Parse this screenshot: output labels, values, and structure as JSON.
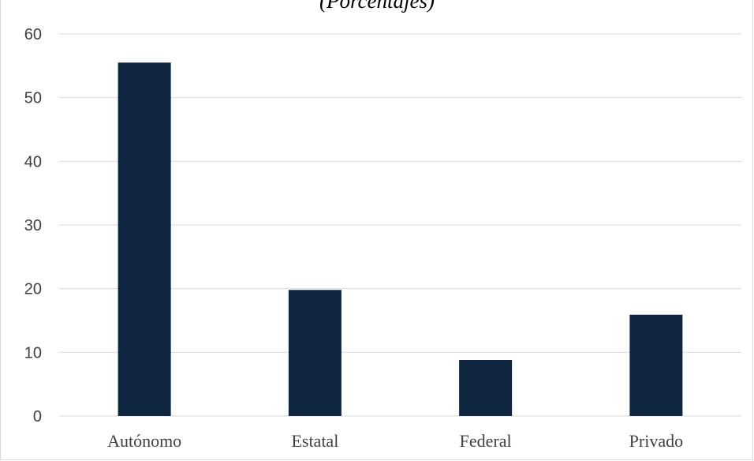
{
  "chart_data": {
    "type": "bar",
    "title": "(Porcentajes)",
    "categories": [
      "Autónomo",
      "Estatal",
      "Federal",
      "Privado"
    ],
    "values": [
      55.5,
      19.8,
      8.8,
      15.9
    ],
    "ylim": [
      0,
      60
    ],
    "yticks": [
      0,
      10,
      20,
      30,
      40,
      50,
      60
    ],
    "grid": true,
    "colors": {
      "bar": "#0f2640",
      "grid": "#d9d9d9"
    }
  }
}
